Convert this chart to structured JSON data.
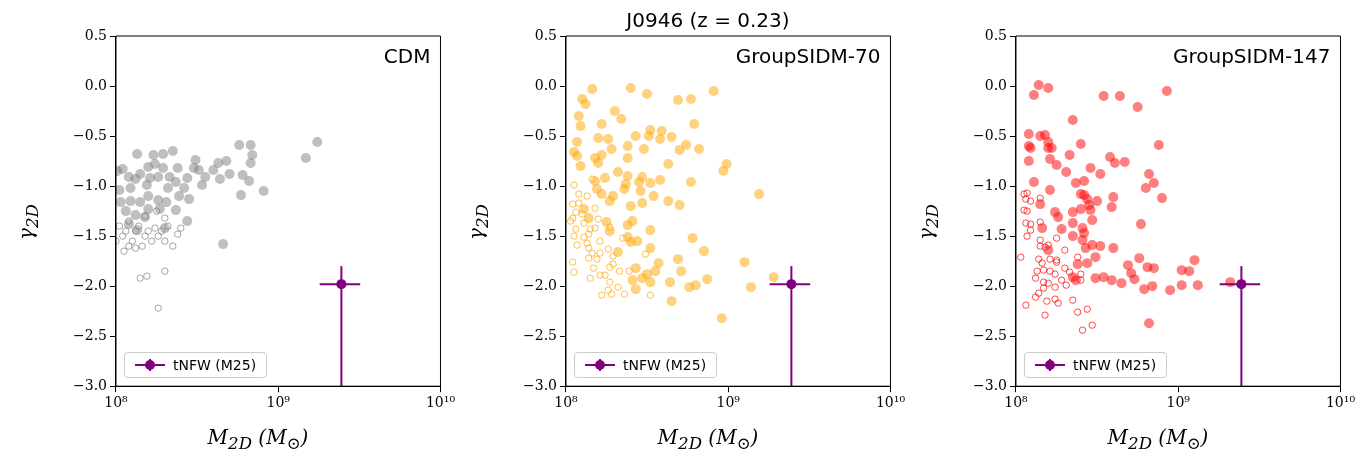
{
  "chart_data": [
    {
      "type": "scatter",
      "annotations": [
        "CDM"
      ],
      "xlabel": "M$_{2D}$ (M$_{⊙}$)",
      "ylabel": "γ$_{2D}$",
      "log": "x",
      "xlim": [
        100000000.0,
        10000000000.0
      ],
      "xticks": [
        {
          "value": 100000000.0,
          "label": "10⁸"
        },
        {
          "value": 1000000000.0,
          "label": "10⁹"
        },
        {
          "value": 10000000000.0,
          "label": "10¹⁰"
        }
      ],
      "ylim": [
        -3,
        0.5
      ],
      "yticks": [
        {
          "value": 0.5,
          "label": "0.5"
        },
        {
          "value": 0,
          "label": "0.0"
        },
        {
          "value": -0.5,
          "label": "−0.5"
        },
        {
          "value": -1,
          "label": "−1.0"
        },
        {
          "value": -1.5,
          "label": "−1.5"
        },
        {
          "value": -2,
          "label": "−2.0"
        },
        {
          "value": -2.5,
          "label": "−2.5"
        },
        {
          "value": -3,
          "label": "−3.0"
        }
      ],
      "legend": "bottom left",
      "marker": "circle",
      "series": [
        {
          "color": "#808080",
          "x": [
            135000000.0,
            170000000.0,
            195000000.0,
            224000000.0,
            575000000.0,
            676000000.0,
            692000000.0,
            1740000000.0,
            1480000000.0,
            676000000.0,
            479000000.0,
            427000000.0,
            309000000.0,
            240000000.0,
            195000000.0,
            174000000.0,
            158000000.0,
            141000000.0,
            110000000.0,
            102000000.0,
            120000000.0,
            132000000.0,
            162000000.0,
            182000000.0,
            214000000.0,
            275000000.0,
            302000000.0,
            324000000.0,
            355000000.0,
            398000000.0,
            501000000.0,
            603000000.0,
            661000000.0,
            437000000.0,
            339000000.0,
            234000000.0,
            263000000.0,
            209000000.0,
            155000000.0,
            123000000.0,
            105000000.0,
            589000000.0,
            813000000.0,
            158000000.0,
            182000000.0,
            204000000.0,
            245000000.0,
            282000000.0,
            107000000.0,
            123000000.0,
            141000000.0,
            158000000.0,
            186000000.0,
            234000000.0,
            115000000.0,
            132000000.0,
            151000000.0,
            275000000.0,
            120000000.0,
            135000000.0,
            200000000.0,
            457000000.0
          ],
          "values": [
            -0.68,
            -0.69,
            -0.68,
            -0.65,
            -0.59,
            -0.59,
            -0.69,
            -0.56,
            -0.72,
            -0.77,
            -0.75,
            -0.77,
            -0.74,
            -0.82,
            -0.82,
            -0.78,
            -0.81,
            -0.88,
            -0.83,
            -0.85,
            -0.91,
            -0.93,
            -0.92,
            -0.91,
            -0.91,
            -0.92,
            -0.82,
            -0.84,
            -0.91,
            -0.84,
            -0.88,
            -0.89,
            -0.95,
            -0.93,
            -0.99,
            -0.96,
            -1.02,
            -1.02,
            -0.99,
            -1.02,
            -1.04,
            -1.09,
            -1.05,
            -1.1,
            -1.14,
            -1.16,
            -1.1,
            -1.13,
            -1.16,
            -1.15,
            -1.16,
            -1.23,
            -1.23,
            -1.24,
            -1.25,
            -1.29,
            -1.31,
            -1.35,
            -1.38,
            -1.44,
            -1.42,
            -1.58
          ]
        },
        {
          "color": "#808080",
          "x": [
            105000000.0,
            110000000.0,
            115000000.0,
            120000000.0,
            126000000.0,
            132000000.0,
            138000000.0,
            145000000.0,
            151000000.0,
            158000000.0,
            166000000.0,
            174000000.0,
            182000000.0,
            191000000.0,
            200000000.0,
            209000000.0,
            224000000.0,
            240000000.0,
            251000000.0,
            141000000.0,
            155000000.0,
            200000000.0,
            182000000.0,
            112000000.0,
            132000000.0,
            151000000.0,
            178000000.0,
            200000000.0,
            100000000.0,
            120000000.0
          ],
          "values": [
            -1.4,
            -1.5,
            -1.45,
            -1.35,
            -1.55,
            -1.45,
            -1.4,
            -1.6,
            -1.5,
            -1.45,
            -1.55,
            -1.42,
            -1.5,
            -1.45,
            -1.55,
            -1.4,
            -1.6,
            -1.48,
            -1.42,
            -1.92,
            -1.9,
            -1.85,
            -2.22,
            -1.65,
            -1.62,
            -1.3,
            -1.25,
            -1.32,
            -1.55,
            -1.6
          ]
        },
        {
          "name": "tNFW (M25)",
          "color": "#800080",
          "x": [
            2450000000.0
          ],
          "values": [
            -1.98
          ],
          "errors": [
            [
              -3,
              -1.8
            ]
          ],
          "xerrors": [
            [
              1800000000.0,
              3200000000.0
            ]
          ]
        }
      ]
    },
    {
      "type": "scatter",
      "title": "J0946 (z = 0.23)",
      "annotations": [
        "GroupSIDM-70"
      ],
      "xlabel": "M$_{2D}$ (M$_{⊙}$)",
      "ylabel": "γ$_{2D}$",
      "log": "x",
      "xlim": [
        100000000.0,
        10000000000.0
      ],
      "xticks": [
        {
          "value": 100000000.0,
          "label": "10⁸"
        },
        {
          "value": 1000000000.0,
          "label": "10⁹"
        },
        {
          "value": 10000000000.0,
          "label": "10¹⁰"
        }
      ],
      "ylim": [
        -3,
        0.5
      ],
      "yticks": [
        {
          "value": 0.5,
          "label": "0.5"
        },
        {
          "value": 0,
          "label": "0.0"
        },
        {
          "value": -0.5,
          "label": "−0.5"
        },
        {
          "value": -1,
          "label": "−1.0"
        },
        {
          "value": -1.5,
          "label": "−1.5"
        },
        {
          "value": -2,
          "label": "−2.0"
        },
        {
          "value": -2.5,
          "label": "−2.5"
        },
        {
          "value": -3,
          "label": "−3.0"
        }
      ],
      "legend": "bottom left",
      "marker": "circle",
      "series": [
        {
          "color": "#ffa500",
          "x": [
            145000000.0,
            251000000.0,
            316000000.0,
            813000000.0,
            490000000.0,
            589000000.0,
            126000000.0,
            132000000.0,
            200000000.0,
            120000000.0,
            123000000.0,
            166000000.0,
            219000000.0,
            617000000.0,
            331000000.0,
            389000000.0,
            117000000.0,
            158000000.0,
            182000000.0,
            269000000.0,
            324000000.0,
            380000000.0,
            447000000.0,
            550000000.0,
            661000000.0,
            501000000.0,
            302000000.0,
            240000000.0,
            191000000.0,
            112000000.0,
            117000000.0,
            151000000.0,
            166000000.0,
            240000000.0,
            123000000.0,
            158000000.0,
            427000000.0,
            977000000.0,
            933000000.0,
            209000000.0,
            240000000.0,
            295000000.0,
            174000000.0,
            151000000.0,
            282000000.0,
            331000000.0,
            380000000.0,
            589000000.0,
            234000000.0,
            155000000.0,
            166000000.0,
            195000000.0,
            229000000.0,
            288000000.0,
            347000000.0,
            186000000.0,
            427000000.0,
            501000000.0,
            251000000.0,
            295000000.0,
            1550000000.0,
            129000000.0,
            138000000.0,
            178000000.0,
            257000000.0,
            240000000.0,
            186000000.0,
            331000000.0,
            603000000.0,
            240000000.0,
            251000000.0,
            275000000.0,
            331000000.0,
            708000000.0,
            209000000.0,
            490000000.0,
            372000000.0,
            1260000000.0,
            269000000.0,
            355000000.0,
            513000000.0,
            316000000.0,
            257000000.0,
            295000000.0,
            331000000.0,
            437000000.0,
            575000000.0,
            631000000.0,
            741000000.0,
            1380000000.0,
            1910000000.0,
            269000000.0,
            447000000.0,
            912000000.0
          ],
          "values": [
            -0.03,
            -0.02,
            -0.08,
            -0.05,
            -0.14,
            -0.13,
            -0.13,
            -0.18,
            -0.25,
            -0.3,
            -0.4,
            -0.38,
            -0.33,
            -0.38,
            -0.44,
            -0.45,
            -0.56,
            -0.52,
            -0.53,
            -0.5,
            -0.5,
            -0.53,
            -0.51,
            -0.59,
            -0.63,
            -0.64,
            -0.63,
            -0.6,
            -0.63,
            -0.66,
            -0.7,
            -0.72,
            -0.69,
            -0.72,
            -0.8,
            -0.77,
            -0.78,
            -0.78,
            -0.85,
            -0.86,
            -0.9,
            -0.91,
            -0.92,
            -0.95,
            -0.96,
            -0.97,
            -0.94,
            -0.96,
            -0.98,
            -1.03,
            -1.08,
            -1.1,
            -1.03,
            -1.05,
            -1.1,
            -1.15,
            -1.15,
            -1.19,
            -1.2,
            -1.17,
            -1.08,
            -1.23,
            -1.32,
            -1.36,
            -1.35,
            -1.39,
            -1.45,
            -1.44,
            -1.52,
            -1.51,
            -1.56,
            -1.55,
            -1.62,
            -1.65,
            -1.66,
            -1.73,
            -1.77,
            -1.76,
            -1.82,
            -1.85,
            -1.85,
            -1.88,
            -1.94,
            -1.92,
            -1.96,
            -1.96,
            -2.01,
            -1.99,
            -1.93,
            -2.01,
            -1.91,
            -2.03,
            -2.15,
            -2.32
          ]
        },
        {
          "color": "#ffa500",
          "x": [
            112000000.0,
            145000000.0,
            120000000.0,
            110000000.0,
            135000000.0,
            120000000.0,
            115000000.0,
            126000000.0,
            151000000.0,
            158000000.0,
            129000000.0,
            110000000.0,
            115000000.0,
            141000000.0,
            151000000.0,
            138000000.0,
            112000000.0,
            129000000.0,
            162000000.0,
            117000000.0,
            135000000.0,
            138000000.0,
            182000000.0,
            145000000.0,
            162000000.0,
            195000000.0,
            138000000.0,
            155000000.0,
            110000000.0,
            195000000.0,
            309000000.0,
            224000000.0,
            186000000.0,
            148000000.0,
            186000000.0,
            214000000.0,
            245000000.0,
            112000000.0,
            162000000.0,
            174000000.0,
            141000000.0,
            186000000.0,
            209000000.0,
            182000000.0,
            191000000.0,
            166000000.0,
            229000000.0,
            331000000.0,
            107000000.0
          ],
          "values": [
            -0.99,
            -0.93,
            -1.17,
            -1.18,
            -1.1,
            -1.08,
            -1.26,
            -1.28,
            -1.22,
            -1.33,
            -1.37,
            -1.32,
            -1.43,
            -1.43,
            -1.42,
            -1.48,
            -1.5,
            -1.51,
            -1.55,
            -1.59,
            -1.57,
            -1.62,
            -1.63,
            -1.67,
            -1.67,
            -1.7,
            -1.72,
            -1.73,
            -1.76,
            -1.78,
            -1.68,
            -1.52,
            -1.41,
            -1.82,
            -1.81,
            -1.85,
            -1.85,
            -1.86,
            -1.89,
            -1.89,
            -1.92,
            -1.96,
            -2.01,
            -2.04,
            -2.08,
            -2.09,
            -2.08,
            -2.09,
            -1.35
          ]
        },
        {
          "name": "tNFW (M25)",
          "color": "#800080",
          "x": [
            2450000000.0
          ],
          "values": [
            -1.98
          ],
          "errors": [
            [
              -3,
              -1.8
            ]
          ],
          "xerrors": [
            [
              1800000000.0,
              3200000000.0
            ]
          ]
        }
      ]
    },
    {
      "type": "scatter",
      "annotations": [
        "GroupSIDM-147"
      ],
      "xlabel": "M$_{2D}$ (M$_{⊙}$)",
      "ylabel": "γ$_{2D}$",
      "log": "x",
      "xlim": [
        100000000.0,
        10000000000.0
      ],
      "xticks": [
        {
          "value": 100000000.0,
          "label": "10⁸"
        },
        {
          "value": 1000000000.0,
          "label": "10⁹"
        },
        {
          "value": 10000000000.0,
          "label": "10¹⁰"
        }
      ],
      "ylim": [
        -3,
        0.5
      ],
      "yticks": [
        {
          "value": 0.5,
          "label": "0.5"
        },
        {
          "value": 0,
          "label": "0.0"
        },
        {
          "value": -0.5,
          "label": "−0.5"
        },
        {
          "value": -1,
          "label": "−1.0"
        },
        {
          "value": -1.5,
          "label": "−1.5"
        },
        {
          "value": -2,
          "label": "−2.0"
        },
        {
          "value": -2.5,
          "label": "−2.5"
        },
        {
          "value": -3,
          "label": "−3.0"
        }
      ],
      "legend": "bottom left",
      "marker": "circle",
      "series": [
        {
          "color": "#ff0000",
          "x": [
            138000000.0,
            158000000.0,
            129000000.0,
            347000000.0,
            437000000.0,
            562000000.0,
            851000000.0,
            224000000.0,
            120000000.0,
            141000000.0,
            151000000.0,
            158000000.0,
            120000000.0,
            123000000.0,
            158000000.0,
            166000000.0,
            251000000.0,
            759000000.0,
            120000000.0,
            162000000.0,
            214000000.0,
            380000000.0,
            407000000.0,
            468000000.0,
            178000000.0,
            204000000.0,
            288000000.0,
            331000000.0,
            661000000.0,
            708000000.0,
            129000000.0,
            234000000.0,
            263000000.0,
            631000000.0,
            162000000.0,
            251000000.0,
            263000000.0,
            275000000.0,
            398000000.0,
            794000000.0,
            316000000.0,
            141000000.0,
            282000000.0,
            389000000.0,
            251000000.0,
            288000000.0,
            174000000.0,
            224000000.0,
            182000000.0,
            295000000.0,
            224000000.0,
            589000000.0,
            145000000.0,
            191000000.0,
            257000000.0,
            263000000.0,
            224000000.0,
            257000000.0,
            269000000.0,
            295000000.0,
            331000000.0,
            398000000.0,
            158000000.0,
            309000000.0,
            575000000.0,
            1260000000.0,
            240000000.0,
            275000000.0,
            490000000.0,
            646000000.0,
            708000000.0,
            1050000000.0,
            1170000000.0,
            513000000.0,
            224000000.0,
            234000000.0,
            309000000.0,
            347000000.0,
            389000000.0,
            447000000.0,
            537000000.0,
            617000000.0,
            692000000.0,
            891000000.0,
            1050000000.0,
            1320000000.0,
            2090000000.0,
            661000000.0
          ],
          "values": [
            0.01,
            -0.02,
            -0.09,
            -0.1,
            -0.1,
            -0.21,
            -0.05,
            -0.34,
            -0.48,
            -0.5,
            -0.49,
            -0.56,
            -0.6,
            -0.62,
            -0.62,
            -0.62,
            -0.58,
            -0.59,
            -0.75,
            -0.73,
            -0.69,
            -0.71,
            -0.77,
            -0.76,
            -0.79,
            -0.86,
            -0.82,
            -0.88,
            -0.88,
            -0.97,
            -0.96,
            -0.97,
            -0.95,
            -1.02,
            -1.04,
            -1.08,
            -1.09,
            -1.13,
            -1.11,
            -1.12,
            -1.15,
            -1.18,
            -1.19,
            -1.21,
            -1.23,
            -1.24,
            -1.26,
            -1.26,
            -1.31,
            -1.34,
            -1.37,
            -1.38,
            -1.42,
            -1.43,
            -1.42,
            -1.47,
            -1.5,
            -1.54,
            -1.62,
            -1.59,
            -1.6,
            -1.62,
            -1.64,
            -1.71,
            -1.72,
            -1.74,
            -1.78,
            -1.77,
            -1.79,
            -1.81,
            -1.82,
            -1.84,
            -1.85,
            -1.87,
            -1.91,
            -1.94,
            -1.92,
            -1.91,
            -1.94,
            -1.97,
            -1.93,
            -2.03,
            -2,
            -2.04,
            -1.99,
            -1.99,
            -1.96,
            -2.37
          ]
        },
        {
          "color": "#ff0000",
          "x": [
            112000000.0,
            117000000.0,
            115000000.0,
            123000000.0,
            141000000.0,
            112000000.0,
            117000000.0,
            115000000.0,
            123000000.0,
            123000000.0,
            141000000.0,
            117000000.0,
            141000000.0,
            141000000.0,
            151000000.0,
            158000000.0,
            178000000.0,
            200000000.0,
            107000000.0,
            138000000.0,
            145000000.0,
            162000000.0,
            178000000.0,
            178000000.0,
            200000000.0,
            240000000.0,
            135000000.0,
            148000000.0,
            162000000.0,
            174000000.0,
            214000000.0,
            251000000.0,
            132000000.0,
            148000000.0,
            158000000.0,
            174000000.0,
            191000000.0,
            204000000.0,
            251000000.0,
            148000000.0,
            138000000.0,
            132000000.0,
            155000000.0,
            174000000.0,
            182000000.0,
            224000000.0,
            115000000.0,
            151000000.0,
            240000000.0,
            275000000.0,
            295000000.0,
            257000000.0
          ],
          "values": [
            -1.08,
            -1.07,
            -1.13,
            -1.15,
            -1.12,
            -1.24,
            -1.25,
            -1.37,
            -1.38,
            -1.44,
            -1.36,
            -1.5,
            -1.54,
            -1.6,
            -1.61,
            -1.59,
            -1.52,
            -1.64,
            -1.71,
            -1.73,
            -1.77,
            -1.73,
            -1.74,
            -1.76,
            -1.82,
            -1.71,
            -1.85,
            -1.84,
            -1.85,
            -1.88,
            -1.86,
            -1.88,
            -1.92,
            -1.96,
            -1.97,
            -2.01,
            -1.94,
            -1.99,
            -1.94,
            -2.02,
            -2.07,
            -2.11,
            -2.15,
            -2.13,
            -2.17,
            -2.14,
            -2.19,
            -2.29,
            -2.26,
            -2.23,
            -2.39,
            -2.44
          ]
        },
        {
          "name": "tNFW (M25)",
          "color": "#800080",
          "x": [
            2450000000.0
          ],
          "values": [
            -1.98
          ],
          "errors": [
            [
              -3,
              -1.8
            ]
          ],
          "xerrors": [
            [
              1800000000.0,
              3200000000.0
            ]
          ]
        }
      ]
    }
  ]
}
